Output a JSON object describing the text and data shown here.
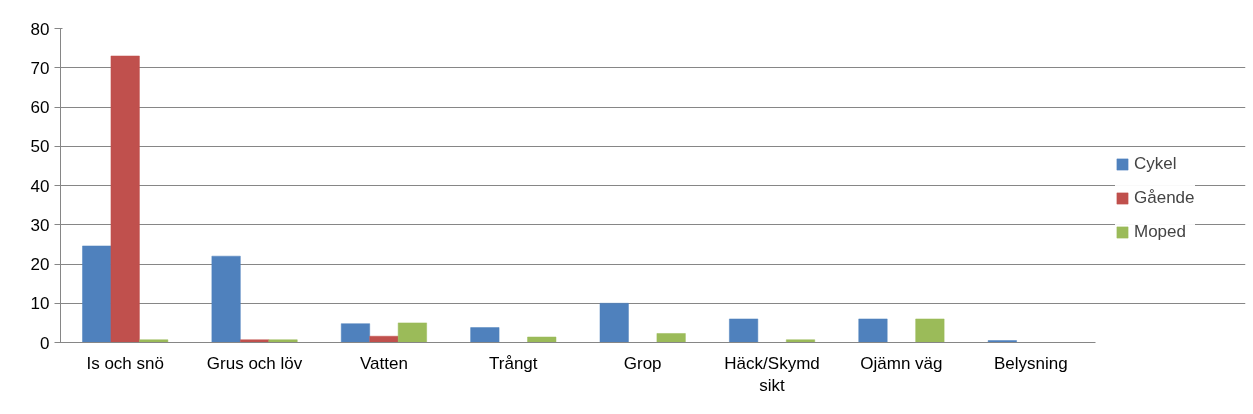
{
  "chart_data": {
    "type": "bar",
    "categories": [
      "Is och snö",
      "Grus och löv",
      "Vatten",
      "Trångt",
      "Grop",
      "Häck/Skymd sikt",
      "Ojämn väg",
      "Belysning"
    ],
    "series": [
      {
        "name": "Cykel",
        "color": "#4f81bd",
        "values": [
          24.6,
          22,
          4.8,
          3.8,
          10,
          6,
          6,
          0.5
        ]
      },
      {
        "name": "Gående",
        "color": "#c0504d",
        "values": [
          73,
          0.7,
          1.6,
          0,
          0,
          0,
          0,
          0
        ]
      },
      {
        "name": "Moped",
        "color": "#9bbb59",
        "values": [
          0.7,
          0.7,
          5,
          1.4,
          2.3,
          0.7,
          6,
          0
        ]
      }
    ],
    "ylim": [
      0,
      80
    ],
    "yticks": [
      0,
      10,
      20,
      30,
      40,
      50,
      60,
      70,
      80
    ],
    "grid": "y",
    "legend": "right"
  }
}
